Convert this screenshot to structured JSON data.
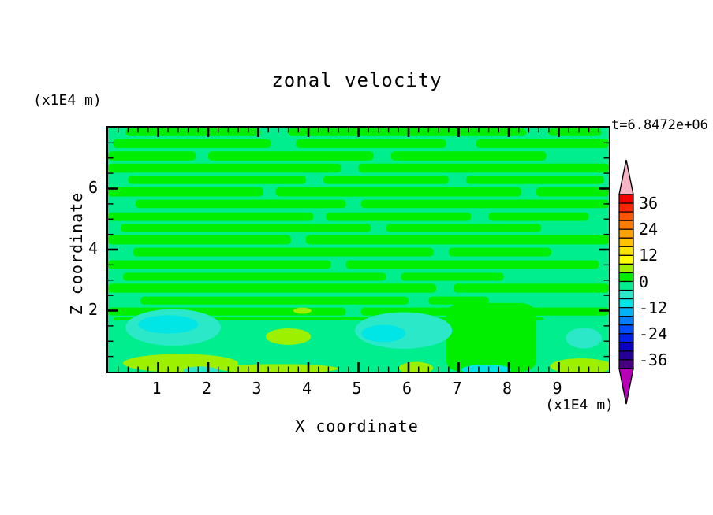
{
  "chart_data": {
    "type": "filled_contour",
    "title": "zonal velocity",
    "annotation": "t=6.8472e+06",
    "xlabel": "X coordinate",
    "zlabel": "Z coordinate",
    "x_unit": "(x1E4 m)",
    "z_unit": "(x1E4 m)",
    "axes": {
      "x": {
        "range": [
          0,
          10
        ],
        "major_ticks": [
          1,
          2,
          3,
          4,
          5,
          6,
          7,
          8,
          9
        ],
        "minor_step": 0.2
      },
      "z": {
        "range": [
          0,
          8
        ],
        "major_ticks": [
          2,
          4,
          6
        ],
        "minor_step": 0.5
      }
    },
    "colorbar": {
      "range": [
        -40,
        40
      ],
      "band_step": 4,
      "tick_labels": [
        "36",
        "24",
        "12",
        "0",
        "-12",
        "-24",
        "-36"
      ],
      "band_colors_top_to_bottom": [
        "#f00000",
        "#fc2600",
        "#ff5400",
        "#ff7b00",
        "#ff9e00",
        "#ffc100",
        "#ffe300",
        "#ffff00",
        "#9cf000",
        "#00ef00",
        "#00ee8e",
        "#2ae8c8",
        "#00e6e6",
        "#00b4f8",
        "#0080ff",
        "#004cff",
        "#0022e8",
        "#0c00c0",
        "#240099",
        "#460080"
      ],
      "over_arrow_color": "#f8b4c4",
      "under_arrow_color": "#b800b8",
      "outline_color": "#000000"
    },
    "palette_roles": {
      "background_band_-4_to_0": "#00ee8e",
      "streak_band_0_to_4": "#00ee00",
      "blob_band_-8_to_-4": "#2ae8c8",
      "core_band_-12_to_-8": "#00e6e6",
      "blob_band_4_to_8": "#9cf000"
    },
    "field": {
      "background_color": "#00ee8e",
      "streak_color": "#00ee00",
      "streak_rows": [
        {
          "z": [
            7.97,
            7.72
          ],
          "x": [
            [
              0.35,
              3.05
            ],
            [
              3.6,
              8.35
            ],
            [
              8.8,
              9.85
            ]
          ]
        },
        {
          "z": [
            7.62,
            7.33
          ],
          "x": [
            [
              0.1,
              3.25
            ],
            [
              3.75,
              6.75
            ],
            [
              7.35,
              10
            ]
          ]
        },
        {
          "z": [
            7.22,
            6.92
          ],
          "x": [
            [
              0,
              1.75
            ],
            [
              2.0,
              5.3
            ],
            [
              5.65,
              8.75
            ]
          ]
        },
        {
          "z": [
            6.82,
            6.52
          ],
          "x": [
            [
              0,
              4.65
            ],
            [
              5.0,
              10
            ]
          ]
        },
        {
          "z": [
            6.42,
            6.15
          ],
          "x": [
            [
              0.4,
              3.95
            ],
            [
              4.3,
              6.8
            ],
            [
              7.15,
              9.9
            ]
          ]
        },
        {
          "z": [
            6.05,
            5.74
          ],
          "x": [
            [
              0,
              3.1
            ],
            [
              3.35,
              8.25
            ],
            [
              8.55,
              10
            ]
          ]
        },
        {
          "z": [
            5.64,
            5.36
          ],
          "x": [
            [
              0.55,
              4.75
            ],
            [
              5.05,
              10
            ]
          ]
        },
        {
          "z": [
            5.22,
            4.94
          ],
          "x": [
            [
              0,
              4.1
            ],
            [
              4.35,
              7.25
            ],
            [
              7.6,
              9.6
            ]
          ]
        },
        {
          "z": [
            4.84,
            4.58
          ],
          "x": [
            [
              0.25,
              5.25
            ],
            [
              5.55,
              8.65
            ]
          ]
        },
        {
          "z": [
            4.48,
            4.17
          ],
          "x": [
            [
              0,
              3.65
            ],
            [
              3.95,
              10
            ]
          ]
        },
        {
          "z": [
            4.06,
            3.78
          ],
          "x": [
            [
              0.5,
              6.5
            ],
            [
              6.8,
              8.85
            ]
          ]
        },
        {
          "z": [
            3.65,
            3.37
          ],
          "x": [
            [
              0,
              4.45
            ],
            [
              4.75,
              9.8
            ]
          ]
        },
        {
          "z": [
            3.24,
            2.98
          ],
          "x": [
            [
              0.3,
              5.55
            ],
            [
              5.85,
              7.9
            ]
          ]
        },
        {
          "z": [
            2.88,
            2.59
          ],
          "x": [
            [
              0,
              6.55
            ],
            [
              6.9,
              10
            ]
          ]
        },
        {
          "z": [
            2.46,
            2.2
          ],
          "x": [
            [
              0.65,
              6.0
            ],
            [
              6.4,
              7.6
            ]
          ]
        },
        {
          "z": [
            2.1,
            1.84
          ],
          "x": [
            [
              0,
              4.75
            ],
            [
              5.05,
              10
            ]
          ]
        },
        {
          "z": [
            1.78,
            1.68
          ],
          "x": [
            [
              0.1,
              8.7
            ]
          ]
        }
      ],
      "green_regions": [
        {
          "x": [
            6.75,
            8.55
          ],
          "z": [
            0,
            2.25
          ]
        }
      ],
      "blobs": [
        {
          "color": "#2ae8c8",
          "cx": 1.3,
          "cz": 1.45,
          "rx": 0.95,
          "rz": 0.6
        },
        {
          "color": "#00e6e6",
          "cx": 1.2,
          "cz": 1.55,
          "rx": 0.6,
          "rz": 0.3
        },
        {
          "color": "#2ae8c8",
          "cx": 5.9,
          "cz": 1.35,
          "rx": 0.97,
          "rz": 0.6
        },
        {
          "color": "#00e6e6",
          "cx": 5.5,
          "cz": 1.25,
          "rx": 0.44,
          "rz": 0.28
        },
        {
          "color": "#2ae8c8",
          "cx": 9.5,
          "cz": 1.1,
          "rx": 0.36,
          "rz": 0.34
        },
        {
          "color": "#9cf000",
          "cx": 1.45,
          "cz": 0.28,
          "rx": 1.15,
          "rz": 0.3
        },
        {
          "color": "#9cf000",
          "cx": 3.6,
          "cz": 1.15,
          "rx": 0.45,
          "rz": 0.27
        },
        {
          "color": "#9cf000",
          "cx": 3.88,
          "cz": 2.0,
          "rx": 0.18,
          "rz": 0.1
        },
        {
          "color": "#9cf000",
          "cx": 3.4,
          "cz": 0.1,
          "rx": 1.2,
          "rz": 0.15
        },
        {
          "color": "#2ae8c8",
          "cx": 1.85,
          "cz": 0.04,
          "rx": 0.35,
          "rz": 0.13
        },
        {
          "color": "#9cf000",
          "cx": 6.15,
          "cz": 0.12,
          "rx": 0.34,
          "rz": 0.2
        },
        {
          "color": "#00e6e6",
          "cx": 7.55,
          "cz": 0.07,
          "rx": 0.5,
          "rz": 0.16
        },
        {
          "color": "#9cf000",
          "cx": 9.45,
          "cz": 0.18,
          "rx": 0.62,
          "rz": 0.26
        }
      ]
    }
  }
}
